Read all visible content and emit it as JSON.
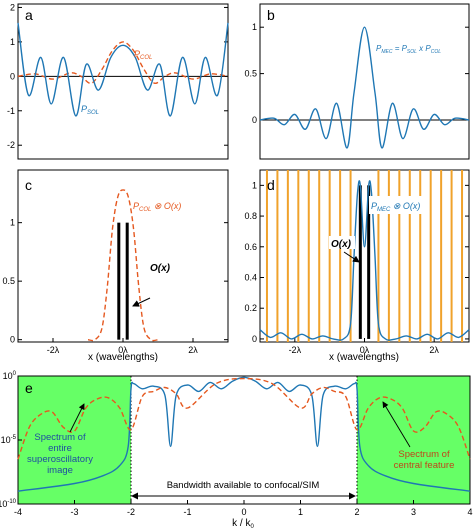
{
  "colors": {
    "psol": "#1f77b4",
    "pcol": "#e5581f",
    "object": "#000000",
    "grating": "#f0a22b",
    "green": "#66ff66",
    "arrow": "#000000"
  },
  "chart_data": [
    {
      "panel": "a",
      "type": "line",
      "xlim": [
        -3,
        3
      ],
      "ylim": [
        -2.4,
        2.1
      ],
      "yticks": [
        "2",
        "1",
        "0",
        "-1",
        "-2"
      ],
      "xticks": [],
      "series": [
        {
          "name": "P_SOL",
          "style": "solid",
          "color": "psol",
          "x": [
            -3,
            -2.7,
            -2.35,
            -2.05,
            -1.7,
            -1.35,
            -1.05,
            -0.7,
            -0.35,
            0,
            0.35,
            0.7,
            1.05,
            1.35,
            1.7,
            2.05,
            2.35,
            2.7,
            3
          ],
          "y": [
            1.55,
            -0.55,
            0.55,
            -0.8,
            0.55,
            -1.15,
            0.35,
            -0.4,
            0.55,
            0.9,
            0.55,
            -0.4,
            0.35,
            -1.15,
            0.55,
            -0.8,
            0.55,
            -0.55,
            1.55
          ]
        },
        {
          "name": "P_COL",
          "style": "dashed",
          "color": "pcol",
          "x": [
            -3,
            -2.5,
            -2.0,
            -1.5,
            -1.2,
            -0.9,
            -0.6,
            -0.3,
            0,
            0.3,
            0.6,
            0.9,
            1.2,
            1.5,
            2.0,
            2.5,
            3
          ],
          "y": [
            0.0,
            0.07,
            -0.08,
            0.1,
            0.0,
            -0.2,
            0.2,
            0.75,
            1.0,
            0.75,
            0.2,
            -0.2,
            0.0,
            0.1,
            -0.08,
            0.07,
            0.0
          ]
        }
      ],
      "labels": {
        "panel": "a",
        "psol": "P",
        "psol_sub": "SOL",
        "pcol": "P",
        "pcol_sub": "COL"
      }
    },
    {
      "panel": "b",
      "type": "line",
      "xlim": [
        -3,
        3
      ],
      "ylim": [
        -0.42,
        1.25
      ],
      "yticks": [
        "1",
        "0.5",
        "0"
      ],
      "xticks": [],
      "series": [
        {
          "name": "P_MEC",
          "style": "solid",
          "color": "psol",
          "x": [
            -3,
            -2.6,
            -2.3,
            -2.0,
            -1.7,
            -1.4,
            -1.1,
            -0.8,
            -0.5,
            -0.3,
            0,
            0.3,
            0.5,
            0.8,
            1.1,
            1.4,
            1.7,
            2.0,
            2.3,
            2.6,
            3
          ],
          "y": [
            0.0,
            0.02,
            -0.05,
            0.06,
            -0.1,
            0.12,
            -0.2,
            0.18,
            -0.3,
            0.3,
            1.0,
            0.3,
            -0.3,
            0.18,
            -0.2,
            0.12,
            -0.1,
            0.06,
            -0.05,
            0.02,
            0.0
          ]
        }
      ],
      "labels": {
        "panel": "b",
        "eq": "P",
        "eq_sub1": "MEC",
        "eq_mid1": " = P",
        "eq_sub2": "SOL",
        "eq_mid2": " x P",
        "eq_sub3": "COL"
      }
    },
    {
      "panel": "c",
      "type": "line",
      "xlim": [
        -3,
        3
      ],
      "ylim": [
        -0.02,
        1.45
      ],
      "yticks": [
        "1",
        "0.5",
        "0"
      ],
      "xticks": [
        "-2λ",
        "0λ",
        "2λ"
      ],
      "xtick_values": [
        -2,
        0,
        2
      ],
      "xlabel": "x (wavelengths)",
      "series": [
        {
          "name": "P_COL ⊗ O(x)",
          "style": "dashed",
          "color": "pcol",
          "x": [
            -1.0,
            -0.8,
            -0.6,
            -0.45,
            -0.3,
            -0.15,
            0,
            0.15,
            0.3,
            0.45,
            0.6,
            0.8,
            1.0
          ],
          "y": [
            0.0,
            0.0,
            0.1,
            0.45,
            0.95,
            1.22,
            1.28,
            1.22,
            0.95,
            0.45,
            0.1,
            0.0,
            0.0
          ]
        },
        {
          "name": "O(x)",
          "style": "bars",
          "color": "object",
          "x": [
            -0.12,
            0.12
          ],
          "y": [
            1.0,
            1.0
          ]
        }
      ],
      "labels": {
        "panel": "c",
        "conv": "P",
        "conv_sub": "COL",
        "conv_op": " ⊗ O(x)",
        "obj": "O(x)"
      }
    },
    {
      "panel": "d",
      "type": "line",
      "xlim": [
        -3,
        3
      ],
      "ylim": [
        -0.02,
        1.1
      ],
      "yticks": [
        "1",
        "0.8",
        "0.6",
        "0.4",
        "0.2",
        "0"
      ],
      "xticks": [
        "-2λ",
        "0λ",
        "2λ"
      ],
      "xtick_values": [
        -2,
        0,
        2
      ],
      "xlabel": "x (wavelengths)",
      "series": [
        {
          "name": "P_MEC ⊗ O(x)",
          "style": "solid",
          "color": "psol",
          "x": [
            -3,
            -2.7,
            -2.4,
            -2.1,
            -1.8,
            -1.5,
            -1.2,
            -0.9,
            -0.6,
            -0.4,
            -0.3,
            -0.2,
            -0.12,
            0,
            0.12,
            0.2,
            0.3,
            0.4,
            0.6,
            0.9,
            1.2,
            1.5,
            1.8,
            2.1,
            2.4,
            2.7,
            3
          ],
          "y": [
            0.06,
            0.01,
            0.04,
            0.0,
            0.03,
            0.0,
            0.02,
            0.0,
            0.0,
            0.1,
            0.55,
            0.95,
            1.0,
            0.6,
            1.0,
            0.95,
            0.55,
            0.1,
            0.0,
            0.0,
            0.02,
            0.0,
            0.03,
            0.0,
            0.04,
            0.01,
            0.06
          ]
        },
        {
          "name": "O(x)",
          "style": "bars",
          "color": "object",
          "x": [
            -0.12,
            0.12
          ],
          "y": [
            1.0,
            1.0
          ]
        }
      ],
      "grating_x": [
        -2.8,
        -2.5,
        -2.2,
        -1.9,
        -1.6,
        -1.3,
        -1.0,
        -0.7,
        -0.4,
        0.4,
        0.7,
        1.0,
        1.3,
        1.6,
        1.9,
        2.2,
        2.5,
        2.8
      ],
      "labels": {
        "panel": "d",
        "conv": "P",
        "conv_sub": "MEC",
        "conv_op": " ⊗ O(x)",
        "obj": "O(x)"
      }
    },
    {
      "panel": "e",
      "type": "line",
      "xlim": [
        -4,
        4
      ],
      "yscale": "log",
      "ylim_exp": [
        -10,
        0
      ],
      "yticks": [
        {
          "base": "10",
          "exp": "0"
        },
        {
          "base": "10",
          "exp": "-5"
        },
        {
          "base": "10",
          "exp": "-10"
        }
      ],
      "xticks": [
        "-4",
        "-3",
        "-2",
        "-1",
        "0",
        "1",
        "2",
        "3",
        "4"
      ],
      "xtick_values": [
        -4,
        -3,
        -2,
        -1,
        0,
        1,
        2,
        3,
        4
      ],
      "xlabel": "k / k",
      "xlabel_sub": "0",
      "shaded_regions": [
        [
          -4,
          -2
        ],
        [
          2,
          4
        ]
      ],
      "series": [
        {
          "name": "Spectrum of entire superoscillatory image",
          "style": "solid",
          "color": "psol",
          "x": [
            -4,
            -3,
            -2.5,
            -2.2,
            -2.05,
            -2.0,
            -1.95,
            -1.8,
            -1.6,
            -1.4,
            -1.3,
            -1.2,
            -1.0,
            -0.8,
            -0.6,
            -0.4,
            -0.2,
            0,
            0.2,
            0.4,
            0.6,
            0.8,
            1.0,
            1.2,
            1.3,
            1.4,
            1.6,
            1.8,
            1.95,
            2.0,
            2.05,
            2.2,
            2.5,
            3,
            4
          ],
          "y": [
            -9.0,
            -8.4,
            -7.8,
            -7.0,
            -5.5,
            -1.0,
            -0.6,
            -1.0,
            -0.8,
            -1.5,
            -5.5,
            -1.5,
            -0.7,
            -1.2,
            -0.5,
            -1.0,
            -0.4,
            -0.1,
            -0.4,
            -1.0,
            -0.5,
            -1.2,
            -0.7,
            -1.5,
            -5.5,
            -1.5,
            -0.8,
            -1.0,
            -0.6,
            -1.0,
            -5.5,
            -7.0,
            -7.8,
            -8.4,
            -9.0
          ]
        },
        {
          "name": "Spectrum of central feature",
          "style": "dashed",
          "color": "pcol",
          "x": [
            -4,
            -3.8,
            -3.6,
            -3.4,
            -3.2,
            -3.0,
            -2.8,
            -2.6,
            -2.4,
            -2.2,
            -2.0,
            -1.8,
            -1.6,
            -1.4,
            -1.2,
            -1.0,
            -0.5,
            0,
            0.5,
            1.0,
            1.2,
            1.4,
            1.6,
            1.8,
            2.0,
            2.2,
            2.4,
            2.6,
            2.8,
            3.0,
            3.2,
            3.4,
            3.6,
            3.8,
            4
          ],
          "y": [
            -6.5,
            -4.0,
            -3.0,
            -2.8,
            -4.0,
            -4.3,
            -2.5,
            -1.8,
            -1.7,
            -2.5,
            -4.2,
            -1.6,
            -1.2,
            -0.9,
            -1.4,
            -2.5,
            -0.6,
            -0.2,
            -0.6,
            -2.5,
            -1.4,
            -0.9,
            -1.2,
            -1.6,
            -4.2,
            -2.5,
            -1.7,
            -1.8,
            -2.5,
            -4.3,
            -4.0,
            -2.8,
            -3.0,
            -4.0,
            -6.5
          ]
        }
      ],
      "labels": {
        "panel": "e",
        "left_1": "Spectrum of",
        "left_2": "entire",
        "left_3": "superoscillatory",
        "left_4": "image",
        "right_1": "Spectrum of",
        "right_2": "central feature",
        "bandwidth": "Bandwidth available to confocal/SIM"
      }
    }
  ]
}
